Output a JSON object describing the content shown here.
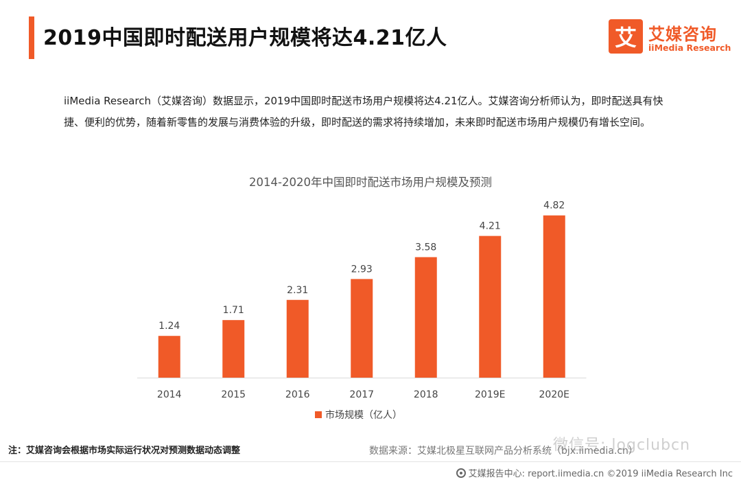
{
  "colors": {
    "accent": "#f05a28",
    "bar": "#f05a28",
    "axis": "#d9d9d9"
  },
  "header": {
    "title": "2019中国即时配送用户规模将达4.21亿人"
  },
  "logo": {
    "box_char": "艾",
    "cn": "艾媒咨询",
    "en": "iiMedia Research"
  },
  "intro": "iiMedia Research（艾媒咨询）数据显示，2019中国即时配送市场用户规模将达4.21亿人。艾媒咨询分析师认为，即时配送具有快捷、便利的优势，随着新零售的发展与消费体验的升级，即时配送的需求将持续增加，未来即时配送市场用户规模仍有增长空间。",
  "chart_data": {
    "type": "bar",
    "title": "2014-2020年中国即时配送市场用户规模及预测",
    "categories": [
      "2014",
      "2015",
      "2016",
      "2017",
      "2018",
      "2019E",
      "2020E"
    ],
    "series": [
      {
        "name": "市场规模（亿人）",
        "values": [
          1.24,
          1.71,
          2.31,
          2.93,
          3.58,
          4.21,
          4.82
        ]
      }
    ],
    "data_labels": [
      "1.24",
      "1.71",
      "2.31",
      "2.93",
      "3.58",
      "4.21",
      "4.82"
    ],
    "ylim": [
      0,
      5.1
    ],
    "legend": "bottom-center",
    "grid": false
  },
  "footnote": "注：艾媒咨询会根据市场实际运行状况对预测数据动态调整",
  "source": "数据来源：艾媒北极星互联网产品分析系统（bjx.iimedia.cn）",
  "watermark": "微信号: logclubcn",
  "footer": {
    "text": "艾媒报告中心: report.iimedia.cn  ©2019  iiMedia Research  Inc"
  }
}
